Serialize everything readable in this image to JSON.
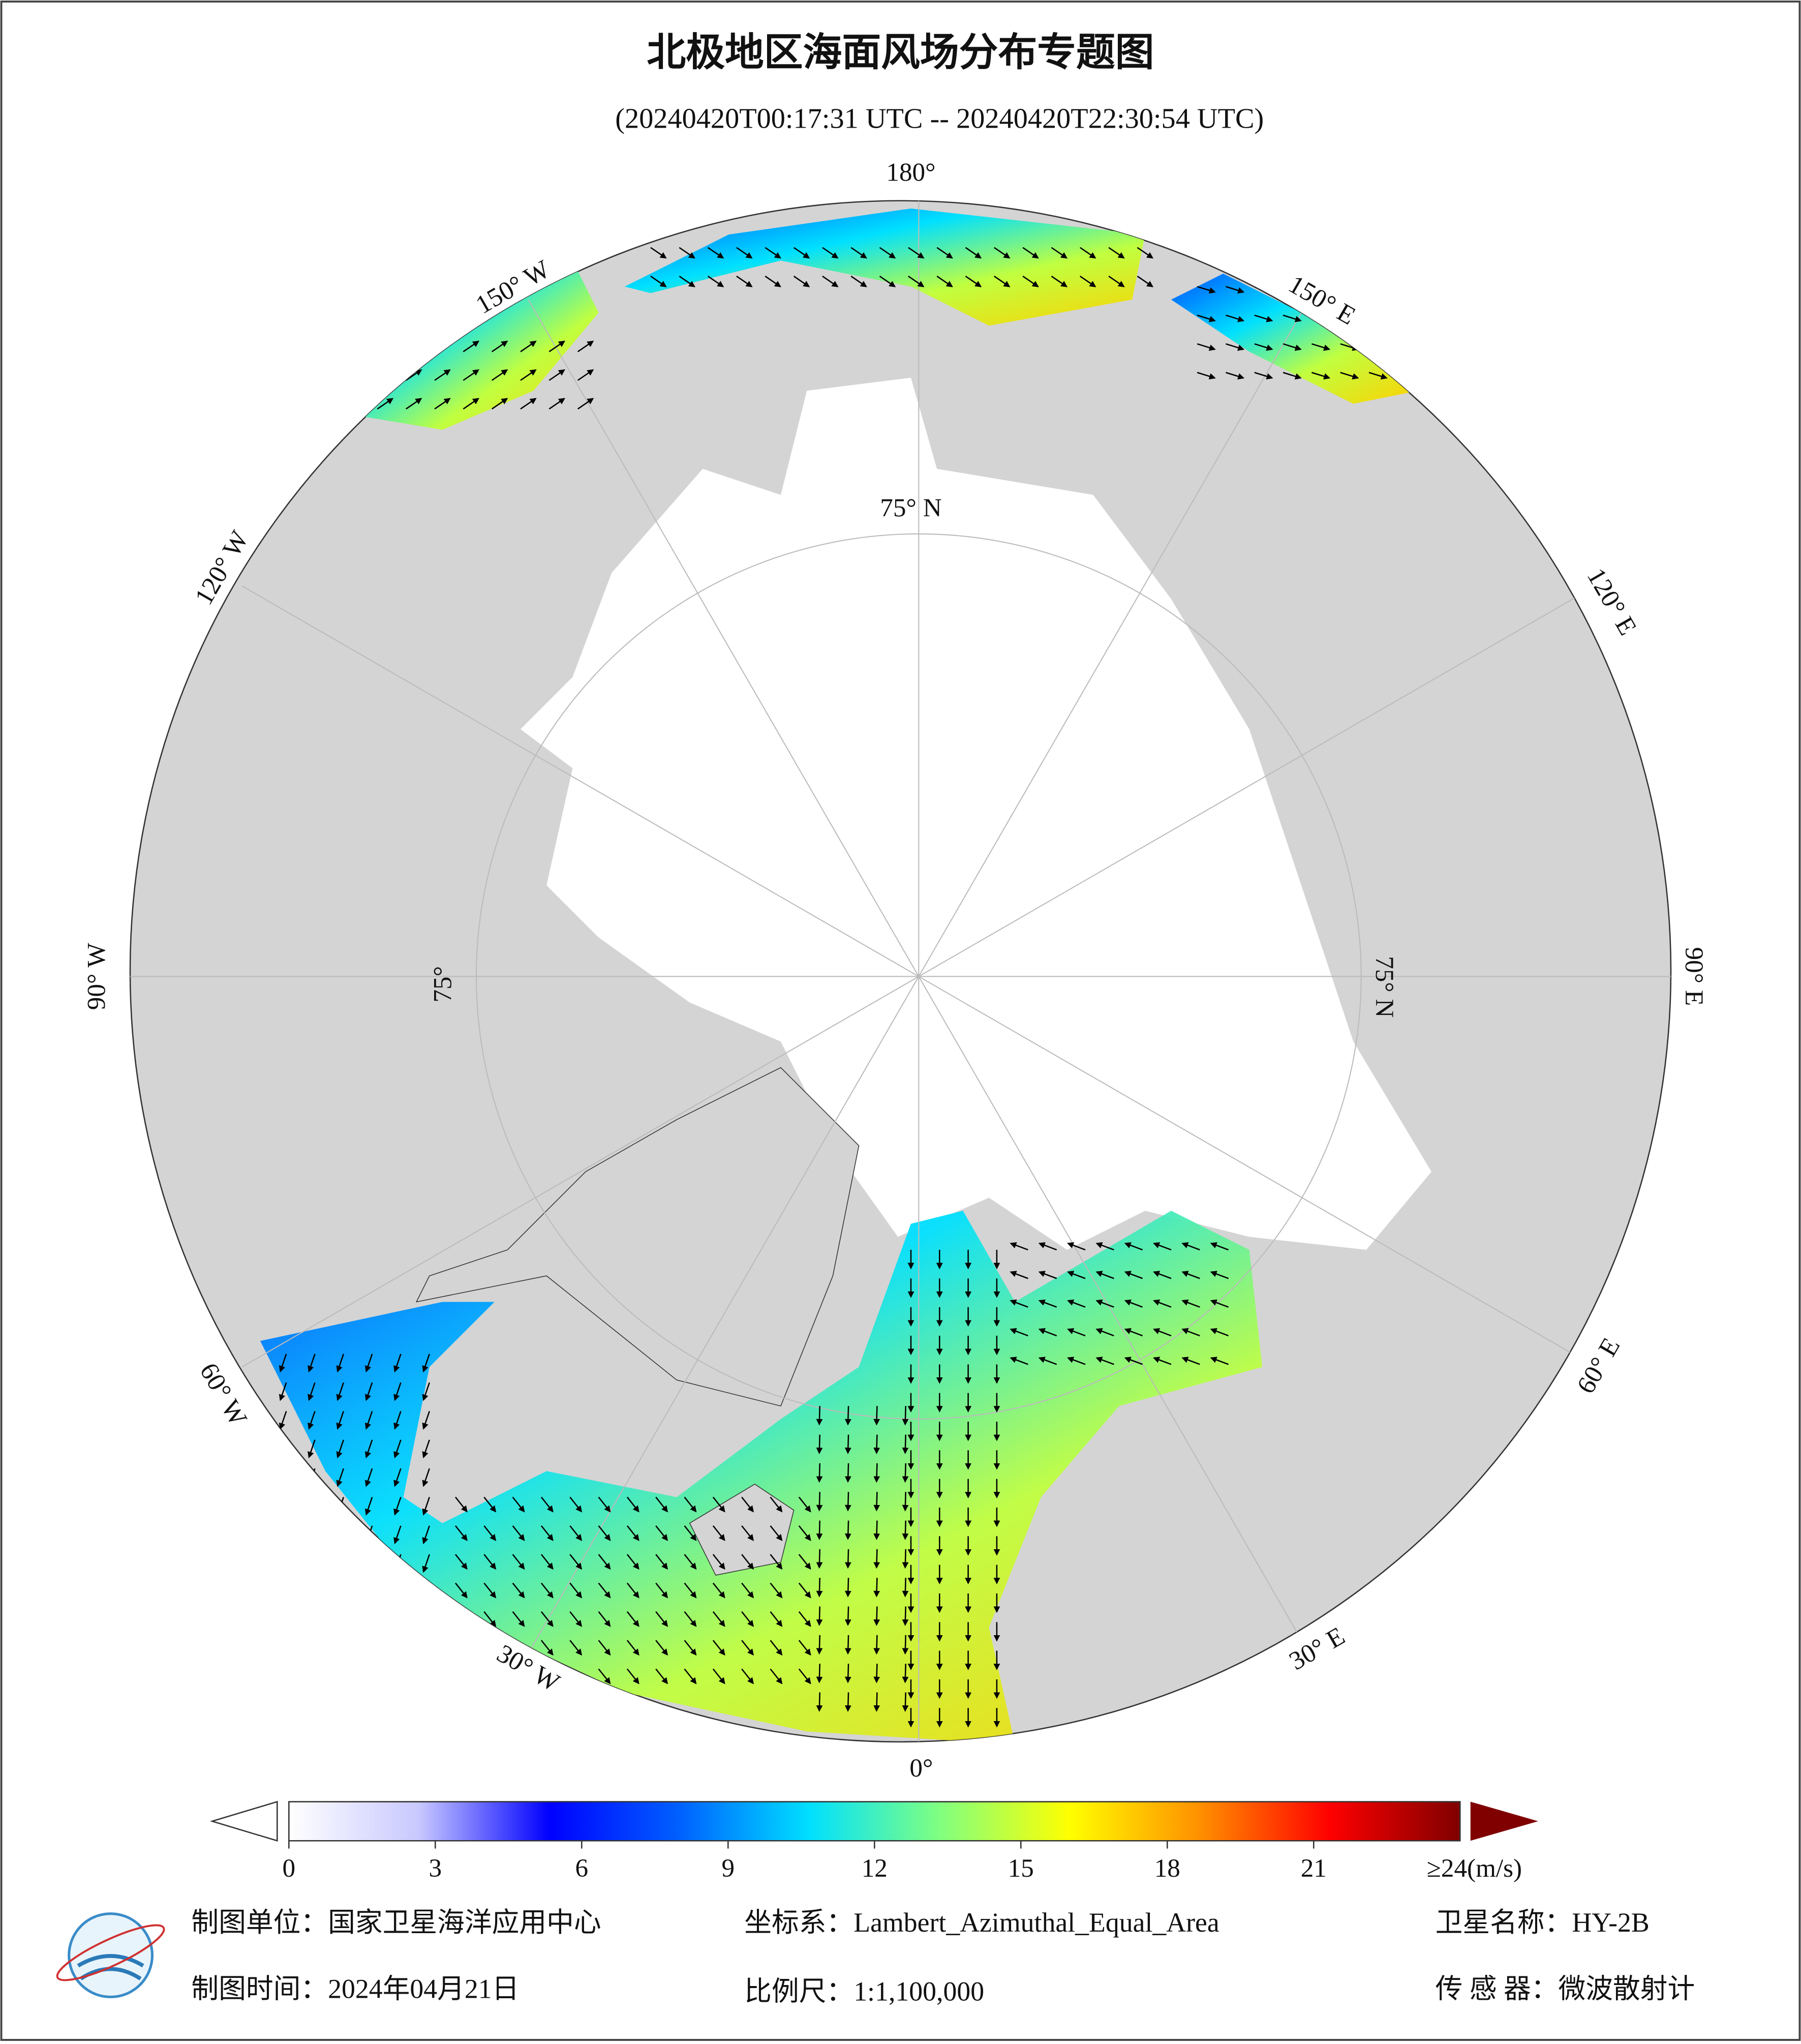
{
  "header": {
    "title": "北极地区海面风场分布专题图",
    "subtitle": "(20240420T00:17:31 UTC -- 20240420T22:30:54 UTC)"
  },
  "map": {
    "graticule_labels": [
      "180°",
      "150° W",
      "120° W",
      "90° W",
      "60° W",
      "30° W",
      "0°",
      "30° E",
      "60° E",
      "90° E",
      "120° E",
      "150° E",
      "75° N",
      "75° N",
      "75°"
    ]
  },
  "colorbar": {
    "lim": [
      0,
      24
    ],
    "ticks": [
      0,
      3,
      6,
      9,
      12,
      15,
      18,
      21
    ],
    "max_label": "≥24(m/s)",
    "colors": [
      "#ffffff",
      "#c8c8ff",
      "#0000ff",
      "#0060ff",
      "#00e0ff",
      "#80ff80",
      "#ffff00",
      "#ff9000",
      "#ff0000",
      "#800000"
    ]
  },
  "footer": {
    "unit": "制图单位：国家卫星海洋应用中心",
    "projection": "坐标系：Lambert_Azimuthal_Equal_Area",
    "satellite": "卫星名称：HY-2B",
    "date": "制图时间：2024年04月21日",
    "scale": "比例尺：1:1,100,000",
    "sensor": "传 感 器：微波散射计"
  }
}
